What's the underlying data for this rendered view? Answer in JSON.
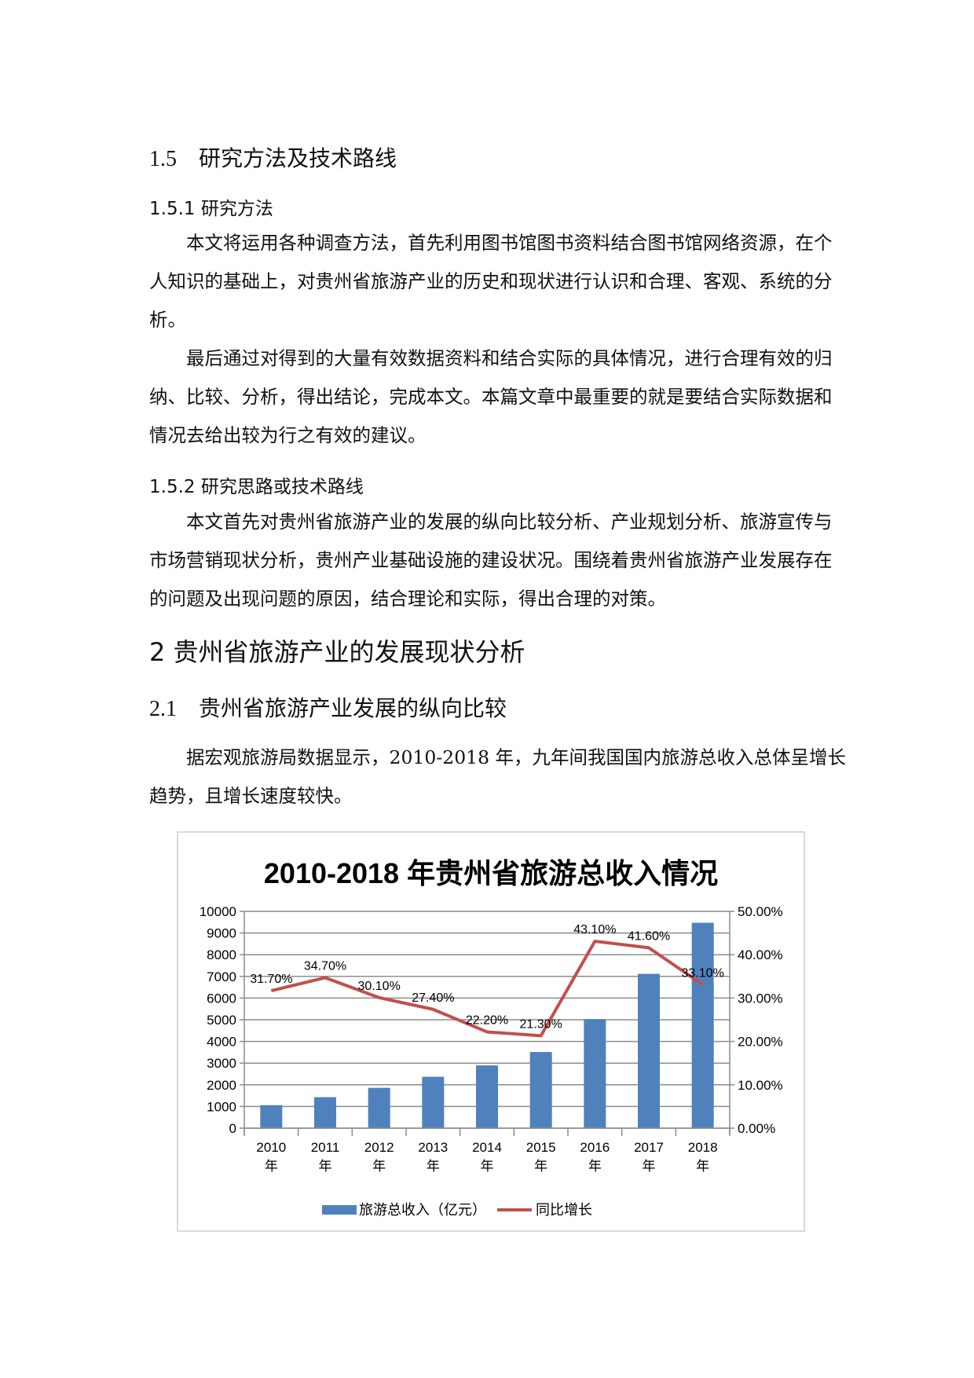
{
  "sec15": {
    "num": "1.5",
    "title": "研究方法及技术路线"
  },
  "sec151": {
    "title": "1.5.1  研究方法"
  },
  "para1": "本文将运用各种调查方法，首先利用图书馆图书资料结合图书馆网络资源，在个人知识的基础上，对贵州省旅游产业的历史和现状进行认识和合理、客观、系统的分析。",
  "para2": "最后通过对得到的大量有效数据资料和结合实际的具体情况，进行合理有效的归纳、比较、分析，得出结论，完成本文。本篇文章中最重要的就是要结合实际数据和情况去给出较为行之有效的建议。",
  "sec152": {
    "title": "1.5.2  研究思路或技术路线"
  },
  "para3": "本文首先对贵州省旅游产业的发展的纵向比较分析、产业规划分析、旅游宣传与市场营销现状分析，贵州产业基础设施的建设状况。围绕着贵州省旅游产业发展存在的问题及出现问题的原因，结合理论和实际，得出合理的对策。",
  "sec2": {
    "title": "2  贵州省旅游产业的发展现状分析"
  },
  "sec21": {
    "num": "2.1",
    "title": "贵州省旅游产业发展的纵向比较"
  },
  "para4": "据宏观旅游局数据显示，2010-2018 年，九年间我国国内旅游总收入总体呈增长趋势，且增长速度较快。",
  "chart_data": {
    "type": "bar+line",
    "title": "2010-2018 年贵州省旅游总收入情况",
    "categories": [
      "2010\n年",
      "2011\n年",
      "2012\n年",
      "2013\n年",
      "2014\n年",
      "2015\n年",
      "2016\n年",
      "2017\n年",
      "2018\n年"
    ],
    "category_years": [
      "2010",
      "2011",
      "2012",
      "2013",
      "2014",
      "2015",
      "2016",
      "2017",
      "2018"
    ],
    "category_suffix": "年",
    "series": [
      {
        "name": "旅游总收入（亿元）",
        "type": "bar",
        "axis": "left",
        "color": "#4f81bd",
        "values": [
          1061,
          1429,
          1860,
          2370,
          2895,
          3512,
          5027,
          7116,
          9471
        ]
      },
      {
        "name": "同比增长",
        "type": "line",
        "axis": "right",
        "color": "#c0504d",
        "values": [
          31.7,
          34.7,
          30.1,
          27.4,
          22.2,
          21.3,
          43.1,
          41.6,
          33.1
        ],
        "labels": [
          "31.70%",
          "34.70%",
          "30.10%",
          "27.40%",
          "22.20%",
          "21.30%",
          "43.10%",
          "41.60%",
          "33.10%"
        ]
      }
    ],
    "y_left": {
      "range": [
        0,
        10000
      ],
      "ticks": [
        "0",
        "1000",
        "2000",
        "3000",
        "4000",
        "5000",
        "6000",
        "7000",
        "8000",
        "9000",
        "10000"
      ]
    },
    "y_right": {
      "range": [
        0,
        50
      ],
      "ticks": [
        "0.00%",
        "10.00%",
        "20.00%",
        "30.00%",
        "40.00%",
        "50.00%"
      ]
    },
    "grid": true,
    "legend": "bottom"
  }
}
